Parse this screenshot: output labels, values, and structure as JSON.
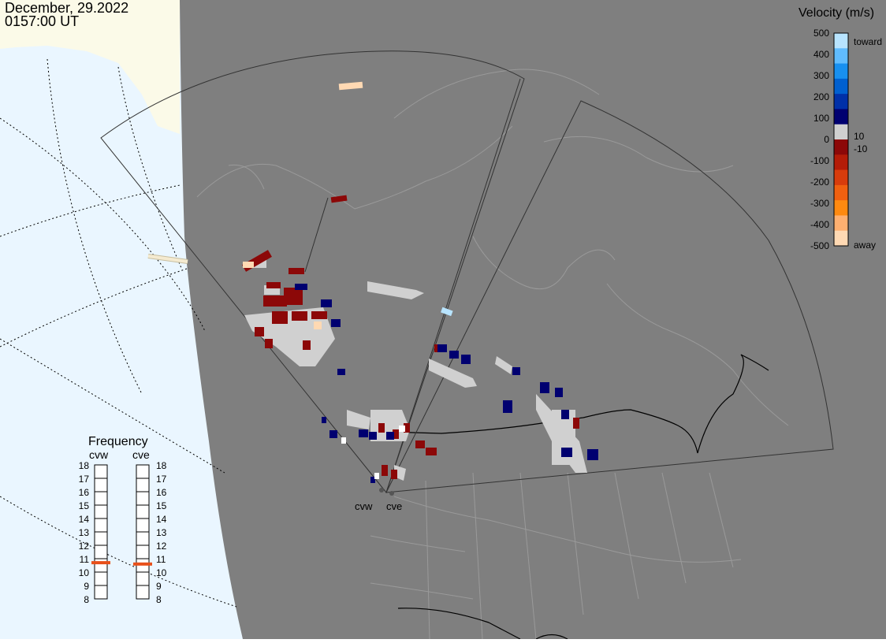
{
  "header": {
    "date": "December, 29.2022",
    "time": "0157:00 UT"
  },
  "legend": {
    "title": "Velocity (m/s)",
    "tick_labels": [
      "500",
      "400",
      "300",
      "200",
      "100",
      "0",
      "-100",
      "-200",
      "-300",
      "-400",
      "-500"
    ],
    "toward_label": "toward",
    "away_label": "away",
    "plus_threshold": "10",
    "minus_threshold": "-10",
    "colors": [
      "#ffd9b3",
      "#ffb070",
      "#ff8a10",
      "#f06010",
      "#d83c0c",
      "#b41c08",
      "#8c0808",
      "#d0d0d0",
      "#000070",
      "#0030a8",
      "#0060d0",
      "#1890f0",
      "#60bcff",
      "#b8e4ff"
    ]
  },
  "radars": {
    "west_label": "cvw",
    "east_label": "cve"
  },
  "frequency": {
    "title": "Frequency",
    "scale_labels": [
      "18",
      "17",
      "16",
      "15",
      "14",
      "13",
      "12",
      "11",
      "10",
      "9",
      "8"
    ],
    "cvw_mhz": 10.7,
    "cve_mhz": 10.6
  },
  "colors": {
    "land": "#7f7f7f",
    "ocean": "#eaf6ff",
    "ice": "#fbfae8",
    "ground_scatter": "#d0d0d0",
    "frequency_marker": "#e8501a"
  }
}
